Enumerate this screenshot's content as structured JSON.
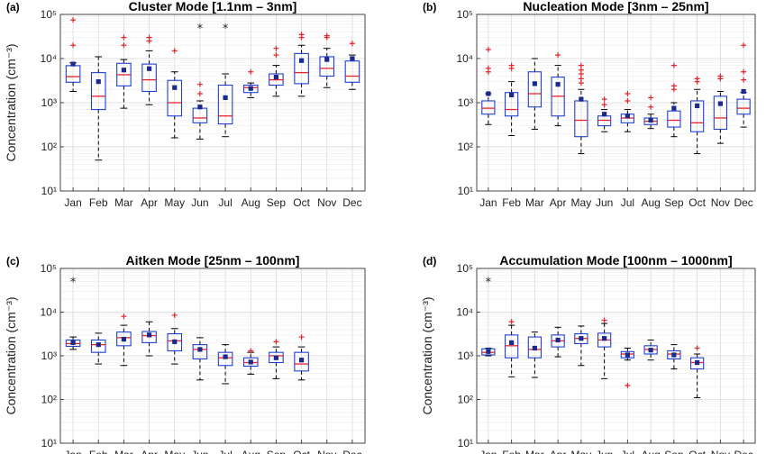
{
  "chart_data": [
    {
      "panel_label": "(a)",
      "type": "box",
      "title": "Cluster Mode [1.1nm – 3nm]",
      "ylabel": "Concentration (cm⁻³)",
      "yscale": "log",
      "ylim": [
        10,
        100000
      ],
      "ytick_labels": [
        "10¹",
        "10²",
        "10³",
        "10⁴",
        "10⁵"
      ],
      "grid": "on",
      "categories": [
        "Jan",
        "Feb",
        "Mar",
        "Apr",
        "May",
        "Jun",
        "Jul",
        "Aug",
        "Sep",
        "Oct",
        "Nov",
        "Dec"
      ],
      "boxes": [
        {
          "whisker_low": 1800,
          "q1": 2900,
          "median": 3900,
          "q3": 6900,
          "whisker_high": 8000,
          "mean": 7500,
          "outliers": [
            75000,
            20000
          ],
          "extremes": []
        },
        {
          "whisker_low": 50,
          "q1": 700,
          "median": 1400,
          "q3": 4800,
          "whisker_high": 11000,
          "mean": 3000,
          "outliers": [],
          "extremes": []
        },
        {
          "whisker_low": 750,
          "q1": 2400,
          "median": 4300,
          "q3": 7800,
          "whisker_high": 9500,
          "mean": 5500,
          "outliers": [
            30000,
            20000
          ],
          "extremes": []
        },
        {
          "whisker_low": 900,
          "q1": 1800,
          "median": 3300,
          "q3": 7500,
          "whisker_high": 15000,
          "mean": 5900,
          "outliers": [
            30000,
            25000
          ],
          "extremes": []
        },
        {
          "whisker_low": 160,
          "q1": 500,
          "median": 1000,
          "q3": 3200,
          "whisker_high": 5000,
          "mean": 2200,
          "outliers": [
            15000
          ],
          "extremes": []
        },
        {
          "whisker_low": 150,
          "q1": 350,
          "median": 450,
          "q3": 750,
          "whisker_high": 1100,
          "mean": 800,
          "outliers": [
            2600,
            1600
          ],
          "extremes": [
            50000
          ]
        },
        {
          "whisker_low": 170,
          "q1": 330,
          "median": 500,
          "q3": 2500,
          "whisker_high": 4500,
          "mean": 1300,
          "outliers": [],
          "extremes": [
            50000
          ]
        },
        {
          "whisker_low": 1300,
          "q1": 1700,
          "median": 2200,
          "q3": 2500,
          "whisker_high": 2800,
          "mean": 2100,
          "outliers": [
            5000
          ],
          "extremes": []
        },
        {
          "whisker_low": 1400,
          "q1": 2500,
          "median": 3300,
          "q3": 4500,
          "whisker_high": 7000,
          "mean": 3800,
          "outliers": [
            17000,
            12000
          ],
          "extremes": []
        },
        {
          "whisker_low": 1400,
          "q1": 2700,
          "median": 4800,
          "q3": 13000,
          "whisker_high": 20000,
          "mean": 9000,
          "outliers": [
            35000,
            30000
          ],
          "extremes": []
        },
        {
          "whisker_low": 2200,
          "q1": 4000,
          "median": 6000,
          "q3": 11000,
          "whisker_high": 17000,
          "mean": 9500,
          "outliers": [
            33000,
            30000
          ],
          "extremes": []
        },
        {
          "whisker_low": 2000,
          "q1": 2900,
          "median": 4000,
          "q3": 8800,
          "whisker_high": 12000,
          "mean": 10000,
          "outliers": [
            22000
          ],
          "extremes": []
        }
      ]
    },
    {
      "panel_label": "(b)",
      "type": "box",
      "title": "Nucleation Mode [3nm – 25nm]",
      "ylabel": "",
      "yscale": "log",
      "ylim": [
        10,
        100000
      ],
      "ytick_labels": [
        "10¹",
        "10²",
        "10³",
        "10⁴",
        "10⁵"
      ],
      "grid": "on",
      "categories": [
        "Jan",
        "Feb",
        "Mar",
        "Apr",
        "May",
        "Jun",
        "Jul",
        "Aug",
        "Sep",
        "Oct",
        "Nov",
        "Dec"
      ],
      "boxes": [
        {
          "whisker_low": 320,
          "q1": 550,
          "median": 750,
          "q3": 1100,
          "whisker_high": 1600,
          "mean": 1600,
          "outliers": [
            16000,
            6000,
            5000
          ],
          "extremes": []
        },
        {
          "whisker_low": 180,
          "q1": 500,
          "median": 700,
          "q3": 1700,
          "whisker_high": 3000,
          "mean": 1500,
          "outliers": [
            7000,
            6000
          ],
          "extremes": []
        },
        {
          "whisker_low": 250,
          "q1": 800,
          "median": 1600,
          "q3": 5000,
          "whisker_high": 10000,
          "mean": 2700,
          "outliers": [],
          "extremes": []
        },
        {
          "whisker_low": 300,
          "q1": 500,
          "median": 1400,
          "q3": 3800,
          "whisker_high": 7000,
          "mean": 2600,
          "outliers": [
            12000
          ],
          "extremes": []
        },
        {
          "whisker_low": 70,
          "q1": 170,
          "median": 400,
          "q3": 1100,
          "whisker_high": 2000,
          "mean": 1200,
          "outliers": [
            7000,
            5500,
            4500,
            3500,
            2800
          ],
          "extremes": []
        },
        {
          "whisker_low": 220,
          "q1": 300,
          "median": 400,
          "q3": 500,
          "whisker_high": 700,
          "mean": 550,
          "outliers": [
            1200,
            900
          ],
          "extremes": []
        },
        {
          "whisker_low": 220,
          "q1": 350,
          "median": 450,
          "q3": 550,
          "whisker_high": 700,
          "mean": 500,
          "outliers": [
            1600,
            1100
          ],
          "extremes": []
        },
        {
          "whisker_low": 260,
          "q1": 320,
          "median": 380,
          "q3": 450,
          "whisker_high": 550,
          "mean": 400,
          "outliers": [
            1300,
            800
          ],
          "extremes": []
        },
        {
          "whisker_low": 170,
          "q1": 280,
          "median": 400,
          "q3": 650,
          "whisker_high": 1000,
          "mean": 750,
          "outliers": [
            7000,
            2400,
            2000
          ],
          "extremes": []
        },
        {
          "whisker_low": 70,
          "q1": 220,
          "median": 350,
          "q3": 1100,
          "whisker_high": 2000,
          "mean": 850,
          "outliers": [
            3500,
            3000
          ],
          "extremes": []
        },
        {
          "whisker_low": 120,
          "q1": 250,
          "median": 450,
          "q3": 1400,
          "whisker_high": 1800,
          "mean": 950,
          "outliers": [
            4000,
            3500
          ],
          "extremes": []
        },
        {
          "whisker_low": 280,
          "q1": 550,
          "median": 750,
          "q3": 1200,
          "whisker_high": 1700,
          "mean": 1800,
          "outliers": [
            20000,
            5000,
            3300
          ],
          "extremes": []
        }
      ]
    },
    {
      "panel_label": "(c)",
      "type": "box",
      "title": "Aitken Mode [25nm – 100nm]",
      "ylabel": "Concentration (cm⁻³)",
      "yscale": "log",
      "ylim": [
        10,
        100000
      ],
      "ytick_labels": [
        "10¹",
        "10²",
        "10³",
        "10⁴",
        "10⁵"
      ],
      "grid": "on",
      "categories": [
        "Jan",
        "Feb",
        "Mar",
        "Apr",
        "May",
        "Jun",
        "Jul",
        "Aug",
        "Sep",
        "Oct",
        "Nov",
        "Dec"
      ],
      "boxes": [
        {
          "whisker_low": 1400,
          "q1": 1650,
          "median": 1900,
          "q3": 2300,
          "whisker_high": 2700,
          "mean": 2000,
          "outliers": [],
          "extremes": [
            50000
          ]
        },
        {
          "whisker_low": 650,
          "q1": 1200,
          "median": 1800,
          "q3": 2300,
          "whisker_high": 3300,
          "mean": 1800,
          "outliers": [],
          "extremes": []
        },
        {
          "whisker_low": 600,
          "q1": 1700,
          "median": 2600,
          "q3": 3500,
          "whisker_high": 5000,
          "mean": 2400,
          "outliers": [
            8000
          ],
          "extremes": []
        },
        {
          "whisker_low": 1000,
          "q1": 2000,
          "median": 2900,
          "q3": 3600,
          "whisker_high": 6000,
          "mean": 3000,
          "outliers": [],
          "extremes": []
        },
        {
          "whisker_low": 650,
          "q1": 1300,
          "median": 2200,
          "q3": 3200,
          "whisker_high": 4200,
          "mean": 2100,
          "outliers": [
            8500
          ],
          "extremes": []
        },
        {
          "whisker_low": 280,
          "q1": 850,
          "median": 1400,
          "q3": 1800,
          "whisker_high": 2600,
          "mean": 1400,
          "outliers": [],
          "extremes": []
        },
        {
          "whisker_low": 230,
          "q1": 600,
          "median": 900,
          "q3": 1200,
          "whisker_high": 1800,
          "mean": 950,
          "outliers": [],
          "extremes": []
        },
        {
          "whisker_low": 380,
          "q1": 580,
          "median": 700,
          "q3": 900,
          "whisker_high": 1200,
          "mean": 720,
          "outliers": [
            1300
          ],
          "extremes": []
        },
        {
          "whisker_low": 300,
          "q1": 700,
          "median": 1000,
          "q3": 1200,
          "whisker_high": 1600,
          "mean": 900,
          "outliers": [
            2100
          ],
          "extremes": []
        },
        {
          "whisker_low": 280,
          "q1": 450,
          "median": 650,
          "q3": 1200,
          "whisker_high": 1600,
          "mean": 800,
          "outliers": [
            2700
          ],
          "extremes": []
        },
        null,
        null
      ]
    },
    {
      "panel_label": "(d)",
      "type": "box",
      "title": "Accumulation Mode [100nm – 1000nm]",
      "ylabel": "Concentration (cm⁻³)",
      "yscale": "log",
      "ylim": [
        10,
        100000
      ],
      "ytick_labels": [
        "10¹",
        "10²",
        "10³",
        "10⁴",
        "10⁵"
      ],
      "grid": "on",
      "categories": [
        "Jan",
        "Feb",
        "Mar",
        "Apr",
        "May",
        "Jun",
        "Jul",
        "Aug",
        "Sep",
        "Oct",
        "Nov",
        "Dec"
      ],
      "boxes": [
        {
          "whisker_low": 1000,
          "q1": 1050,
          "median": 1200,
          "q3": 1450,
          "whisker_high": 1500,
          "mean": 1250,
          "outliers": [],
          "extremes": [
            50000
          ]
        },
        {
          "whisker_low": 330,
          "q1": 900,
          "median": 1700,
          "q3": 3000,
          "whisker_high": 5000,
          "mean": 2000,
          "outliers": [
            6000
          ],
          "extremes": []
        },
        {
          "whisker_low": 320,
          "q1": 900,
          "median": 1400,
          "q3": 2700,
          "whisker_high": 3500,
          "mean": 1500,
          "outliers": [],
          "extremes": []
        },
        {
          "whisker_low": 950,
          "q1": 1600,
          "median": 2200,
          "q3": 3000,
          "whisker_high": 4500,
          "mean": 2300,
          "outliers": [],
          "extremes": []
        },
        {
          "whisker_low": 600,
          "q1": 1900,
          "median": 2500,
          "q3": 3200,
          "whisker_high": 4800,
          "mean": 2500,
          "outliers": [],
          "extremes": []
        },
        {
          "whisker_low": 300,
          "q1": 1600,
          "median": 2300,
          "q3": 3300,
          "whisker_high": 5500,
          "mean": 2500,
          "outliers": [
            6500
          ],
          "extremes": []
        },
        {
          "whisker_low": 800,
          "q1": 900,
          "median": 1100,
          "q3": 1250,
          "whisker_high": 1500,
          "mean": 1050,
          "outliers": [
            210
          ],
          "extremes": []
        },
        {
          "whisker_low": 800,
          "q1": 1100,
          "median": 1400,
          "q3": 1700,
          "whisker_high": 2300,
          "mean": 1350,
          "outliers": [],
          "extremes": []
        },
        {
          "whisker_low": 500,
          "q1": 850,
          "median": 1100,
          "q3": 1300,
          "whisker_high": 1800,
          "mean": 1050,
          "outliers": [],
          "extremes": []
        },
        {
          "whisker_low": 110,
          "q1": 500,
          "median": 700,
          "q3": 900,
          "whisker_high": 1100,
          "mean": 700,
          "outliers": [
            1500
          ],
          "extremes": []
        },
        null,
        null
      ]
    }
  ],
  "colors": {
    "box": "#1f3fd6",
    "median": "#e8232b",
    "mean": "#1a2a8c",
    "outlier": "#e8232b",
    "extreme": "#222222",
    "grid": "#d9d9d9"
  }
}
